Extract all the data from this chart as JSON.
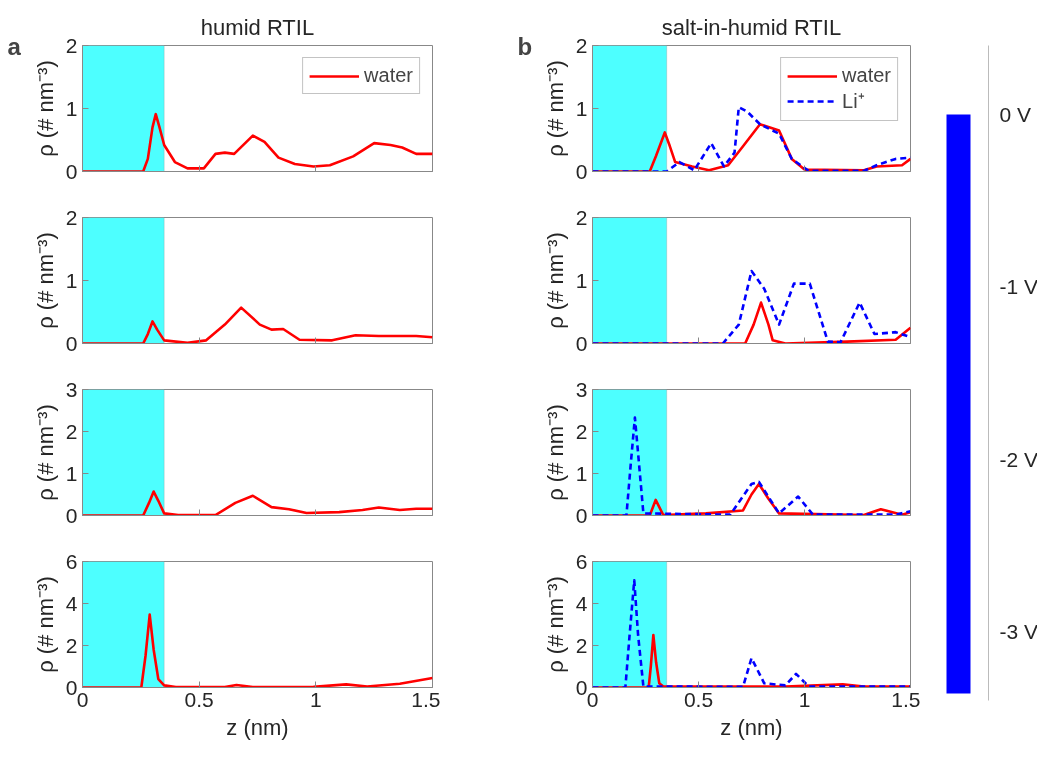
{
  "chart_data": [
    {
      "type": "line",
      "title": "humid RTIL",
      "annotations": [
        "a"
      ],
      "ylabel": "ρ (# nm⁻³)",
      "xlim": [
        0,
        1.5
      ],
      "ylim": [
        0,
        2
      ],
      "xticks": [
        0,
        0.5,
        1,
        1.5
      ],
      "yticks": [
        0,
        1,
        2
      ],
      "tick_labels": "y",
      "legend": "top right",
      "bands": [
        {
          "axis": "x",
          "from": 0,
          "to": 0.35,
          "color": "#4dffff"
        }
      ],
      "series": [
        {
          "name": "water",
          "color": "#ff0000",
          "line_style": "solid",
          "x": [
            0,
            0.26,
            0.28,
            0.3,
            0.314,
            0.33,
            0.35,
            0.396,
            0.45,
            0.52,
            0.57,
            0.61,
            0.65,
            0.73,
            0.78,
            0.84,
            0.91,
            0.99,
            1.06,
            1.16,
            1.25,
            1.32,
            1.37,
            1.43,
            1.5
          ],
          "values": [
            0,
            0,
            0.2,
            0.7,
            0.91,
            0.7,
            0.42,
            0.15,
            0.05,
            0.05,
            0.28,
            0.3,
            0.28,
            0.57,
            0.47,
            0.22,
            0.12,
            0.08,
            0.1,
            0.24,
            0.45,
            0.42,
            0.38,
            0.28,
            0.28
          ]
        }
      ]
    },
    {
      "type": "line",
      "ylabel": "ρ (# nm⁻³)",
      "xlim": [
        0,
        1.5
      ],
      "ylim": [
        0,
        2
      ],
      "xticks": [
        0,
        0.5,
        1,
        1.5
      ],
      "yticks": [
        0,
        1,
        2
      ],
      "tick_labels": "y",
      "bands": [
        {
          "axis": "x",
          "from": 0,
          "to": 0.35,
          "color": "#4dffff"
        }
      ],
      "series": [
        {
          "color": "#ff0000",
          "line_style": "solid",
          "x": [
            0,
            0.26,
            0.28,
            0.3,
            0.32,
            0.35,
            0.45,
            0.53,
            0.61,
            0.68,
            0.76,
            0.81,
            0.86,
            0.93,
            1.07,
            1.17,
            1.27,
            1.43,
            1.5
          ],
          "values": [
            0,
            0,
            0.15,
            0.35,
            0.22,
            0.05,
            0.01,
            0.05,
            0.3,
            0.57,
            0.3,
            0.22,
            0.23,
            0.06,
            0.05,
            0.13,
            0.12,
            0.12,
            0.1
          ]
        }
      ]
    },
    {
      "type": "line",
      "ylabel": "ρ (# nm⁻³)",
      "xlim": [
        0,
        1.5
      ],
      "ylim": [
        0,
        3
      ],
      "xticks": [
        0,
        0.5,
        1,
        1.5
      ],
      "yticks": [
        0,
        1,
        2,
        3
      ],
      "tick_labels": "y",
      "bands": [
        {
          "axis": "x",
          "from": 0,
          "to": 0.35,
          "color": "#4dffff"
        }
      ],
      "series": [
        {
          "color": "#ff0000",
          "line_style": "solid",
          "x": [
            0,
            0.26,
            0.285,
            0.305,
            0.325,
            0.35,
            0.41,
            0.57,
            0.655,
            0.73,
            0.81,
            0.885,
            0.96,
            1.1,
            1.2,
            1.27,
            1.36,
            1.43,
            1.5
          ],
          "values": [
            0,
            0,
            0.3,
            0.57,
            0.35,
            0.05,
            0.01,
            0.01,
            0.3,
            0.47,
            0.2,
            0.15,
            0.06,
            0.08,
            0.13,
            0.19,
            0.13,
            0.16,
            0.16
          ]
        }
      ]
    },
    {
      "type": "line",
      "xlabel": "z (nm)",
      "ylabel": "ρ (# nm⁻³)",
      "xlim": [
        0,
        1.5
      ],
      "ylim": [
        0,
        6
      ],
      "xticks": [
        0,
        0.5,
        1,
        1.5
      ],
      "yticks": [
        0,
        2,
        4,
        6
      ],
      "bands": [
        {
          "axis": "x",
          "from": 0,
          "to": 0.35,
          "color": "#4dffff"
        }
      ],
      "series": [
        {
          "color": "#ff0000",
          "line_style": "solid",
          "x": [
            0,
            0.252,
            0.27,
            0.288,
            0.305,
            0.325,
            0.35,
            0.4,
            0.61,
            0.66,
            0.73,
            0.99,
            1.13,
            1.22,
            1.36,
            1.5
          ],
          "values": [
            0,
            0,
            1.5,
            3.47,
            1.8,
            0.4,
            0.1,
            0.02,
            0.02,
            0.12,
            0.02,
            0.03,
            0.15,
            0.05,
            0.18,
            0.45
          ]
        }
      ]
    },
    {
      "type": "line",
      "title": "salt-in-humid RTIL",
      "annotations": [
        "b"
      ],
      "ylabel": "ρ (# nm⁻³)",
      "xlim": [
        0,
        1.5
      ],
      "ylim": [
        0,
        2
      ],
      "xticks": [
        0,
        0.5,
        1,
        1.5
      ],
      "yticks": [
        0,
        1,
        2
      ],
      "tick_labels": "y",
      "legend": "top right",
      "bands": [
        {
          "axis": "x",
          "from": 0,
          "to": 0.35,
          "color": "#4dffff"
        }
      ],
      "series": [
        {
          "name": "water",
          "color": "#ff0000",
          "line_style": "solid",
          "x": [
            0,
            0.27,
            0.3,
            0.341,
            0.365,
            0.39,
            0.47,
            0.55,
            0.64,
            0.71,
            0.79,
            0.88,
            0.94,
            1.0,
            1.28,
            1.34,
            1.46,
            1.5
          ],
          "values": [
            0,
            0,
            0.25,
            0.62,
            0.4,
            0.15,
            0.08,
            0.02,
            0.1,
            0.4,
            0.75,
            0.65,
            0.2,
            0.03,
            0.02,
            0.08,
            0.1,
            0.2
          ]
        },
        {
          "name": "Li⁺",
          "color": "#0000ff",
          "line_style": "dashed",
          "x": [
            0,
            0.35,
            0.41,
            0.48,
            0.56,
            0.62,
            0.67,
            0.69,
            0.73,
            0.79,
            0.88,
            0.94,
            1.02,
            1.28,
            1.34,
            1.43,
            1.5
          ],
          "values": [
            0,
            0,
            0.15,
            0.02,
            0.45,
            0.08,
            0.3,
            1.02,
            0.95,
            0.75,
            0.6,
            0.2,
            0.01,
            0.01,
            0.1,
            0.2,
            0.22
          ]
        }
      ]
    },
    {
      "type": "line",
      "ylabel": "ρ (# nm⁻³)",
      "xlim": [
        0,
        1.5
      ],
      "ylim": [
        0,
        2
      ],
      "xticks": [
        0,
        0.5,
        1,
        1.5
      ],
      "yticks": [
        0,
        1,
        2
      ],
      "tick_labels": "y",
      "bands": [
        {
          "axis": "x",
          "from": 0,
          "to": 0.35,
          "color": "#4dffff"
        }
      ],
      "series": [
        {
          "color": "#ff0000",
          "line_style": "solid",
          "x": [
            0,
            0.72,
            0.76,
            0.795,
            0.83,
            0.85,
            0.91,
            1.2,
            1.43,
            1.5
          ],
          "values": [
            0,
            0,
            0.3,
            0.65,
            0.3,
            0.05,
            0,
            0.03,
            0.06,
            0.25
          ]
        },
        {
          "color": "#0000ff",
          "line_style": "dashed",
          "x": [
            0,
            0.615,
            0.69,
            0.75,
            0.81,
            0.88,
            0.95,
            1.025,
            1.11,
            1.17,
            1.26,
            1.33,
            1.43,
            1.5
          ],
          "values": [
            0,
            0,
            0.3,
            1.15,
            0.87,
            0.3,
            0.95,
            0.95,
            0.03,
            0.02,
            0.65,
            0.15,
            0.18,
            0.1
          ]
        }
      ]
    },
    {
      "type": "line",
      "ylabel": "ρ (# nm⁻³)",
      "xlim": [
        0,
        1.5
      ],
      "ylim": [
        0,
        3
      ],
      "xticks": [
        0,
        0.5,
        1,
        1.5
      ],
      "yticks": [
        0,
        1,
        2,
        3
      ],
      "tick_labels": "y",
      "bands": [
        {
          "axis": "x",
          "from": 0,
          "to": 0.35,
          "color": "#4dffff"
        }
      ],
      "series": [
        {
          "color": "#ff0000",
          "line_style": "solid",
          "x": [
            0,
            0.27,
            0.298,
            0.334,
            0.535,
            0.71,
            0.75,
            0.785,
            0.83,
            0.88,
            1.28,
            1.36,
            1.46,
            1.5
          ],
          "values": [
            0,
            0,
            0.37,
            0.01,
            0.05,
            0.12,
            0.5,
            0.75,
            0.4,
            0.05,
            0.01,
            0.15,
            0.02,
            0.08
          ]
        },
        {
          "color": "#0000ff",
          "line_style": "dashed",
          "x": [
            0,
            0.16,
            0.18,
            0.2,
            0.22,
            0.24,
            0.65,
            0.75,
            0.785,
            0.88,
            0.97,
            1.04,
            1.43,
            1.5
          ],
          "values": [
            0,
            0,
            1.2,
            2.33,
            1.2,
            0.05,
            0.02,
            0.75,
            0.8,
            0.05,
            0.45,
            0.02,
            0.02,
            0.1
          ]
        }
      ]
    },
    {
      "type": "line",
      "xlabel": "z (nm)",
      "ylabel": "ρ (# nm⁻³)",
      "xlim": [
        0,
        1.5
      ],
      "ylim": [
        0,
        6
      ],
      "xticks": [
        0,
        0.5,
        1,
        1.5
      ],
      "yticks": [
        0,
        2,
        4,
        6
      ],
      "bands": [
        {
          "axis": "x",
          "from": 0,
          "to": 0.35,
          "color": "#4dffff"
        }
      ],
      "series": [
        {
          "color": "#ff0000",
          "line_style": "solid",
          "x": [
            0,
            0.265,
            0.275,
            0.287,
            0.3,
            0.315,
            0.334,
            0.91,
            1.18,
            1.28,
            1.5
          ],
          "values": [
            0,
            0,
            1.0,
            2.5,
            1.2,
            0.2,
            0.05,
            0.05,
            0.15,
            0.05,
            0.05
          ]
        },
        {
          "color": "#0000ff",
          "line_style": "dashed",
          "x": [
            0,
            0.155,
            0.175,
            0.197,
            0.215,
            0.24,
            0.71,
            0.75,
            0.81,
            0.91,
            0.96,
            1.02,
            1.5
          ],
          "values": [
            0,
            0,
            2.5,
            5.1,
            2.5,
            0.05,
            0.03,
            1.4,
            0.2,
            0.1,
            0.65,
            0.05,
            0.05
          ]
        }
      ]
    },
    {
      "type": "bar",
      "categories": [
        null
      ],
      "values": [
        -3.36
      ],
      "color": "#0000ff",
      "ylim": [
        -3.4,
        0.4
      ],
      "yticks": [
        {
          "value": 0,
          "label": "0 V"
        },
        {
          "value": -1,
          "label": "-1 V"
        },
        {
          "value": -2,
          "label": "-2 V"
        },
        {
          "value": -3,
          "label": "-3 V"
        }
      ],
      "tick_labels": "y"
    }
  ]
}
